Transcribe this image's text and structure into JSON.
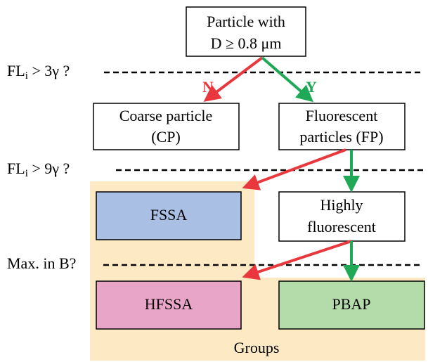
{
  "nodes": [
    {
      "lines": [
        "Particle with",
        "D ≥ 0.8 μm"
      ]
    },
    {
      "lines": [
        "Coarse particle",
        "(CP)"
      ]
    },
    {
      "lines": [
        "Fluorescent",
        "particles (FP)"
      ]
    },
    {
      "lines": [
        "FSSA"
      ]
    },
    {
      "lines": [
        "Highly",
        "fluorescent"
      ]
    },
    {
      "lines": [
        "HFSSA"
      ]
    },
    {
      "lines": [
        "PBAP"
      ]
    }
  ],
  "conditions": [
    {
      "base": "FL",
      "sub": "i",
      "rest": " > 3γ ?"
    },
    {
      "base": "FL",
      "sub": "i",
      "rest": " > 9γ ?"
    },
    {
      "base": "Max. in B?"
    }
  ],
  "edge_labels": {
    "no": "N",
    "yes": "Y"
  },
  "groups_label": "Groups"
}
